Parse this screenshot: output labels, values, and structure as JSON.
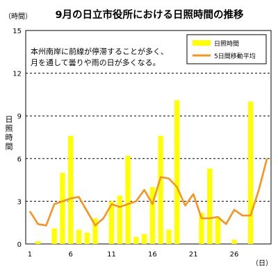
{
  "chart_data": {
    "type": "bar",
    "title": "9月の日立市役所における日照時間の推移",
    "y_unit": "（時間）",
    "x_unit": "（日）",
    "ylabel": "日照時間",
    "ylim": [
      0,
      15
    ],
    "y_ticks": [
      0,
      3,
      6,
      9,
      12,
      15
    ],
    "x_ticks": [
      1,
      6,
      11,
      16,
      21,
      26
    ],
    "grid": "dashed horizontal",
    "legend_position": "top-right",
    "annotation": [
      "本州南岸に前線が停滞することが多く、",
      "月を通して曇りや雨の日が多くなる。"
    ],
    "x": [
      1,
      2,
      3,
      4,
      5,
      6,
      7,
      8,
      9,
      10,
      11,
      12,
      13,
      14,
      15,
      16,
      17,
      18,
      19,
      20,
      21,
      22,
      23,
      24,
      25,
      26,
      27,
      28,
      29,
      30
    ],
    "series": [
      {
        "name": "日照時間",
        "kind": "bar",
        "color": "#ffff00",
        "values": [
          0.0,
          0.2,
          0.0,
          1.1,
          5.0,
          7.6,
          1.0,
          0.8,
          1.8,
          0.0,
          3.0,
          3.4,
          6.2,
          0.5,
          0.7,
          4.0,
          7.6,
          1.0,
          10.1,
          0.0,
          0.0,
          2.2,
          5.3,
          1.8,
          0.0,
          0.3,
          0.0,
          10.0,
          0.0,
          0.0
        ]
      },
      {
        "name": "5日間移動平均",
        "kind": "line",
        "color": "#f7941d",
        "values": [
          2.3,
          1.4,
          1.3,
          2.8,
          3.0,
          3.2,
          3.3,
          2.3,
          1.3,
          1.8,
          2.8,
          2.6,
          2.8,
          3.0,
          3.8,
          2.8,
          4.7,
          4.6,
          4.0,
          2.7,
          3.5,
          1.8,
          1.8,
          1.9,
          1.4,
          2.4,
          2.0,
          2.0,
          3.8,
          6.0
        ]
      }
    ]
  }
}
